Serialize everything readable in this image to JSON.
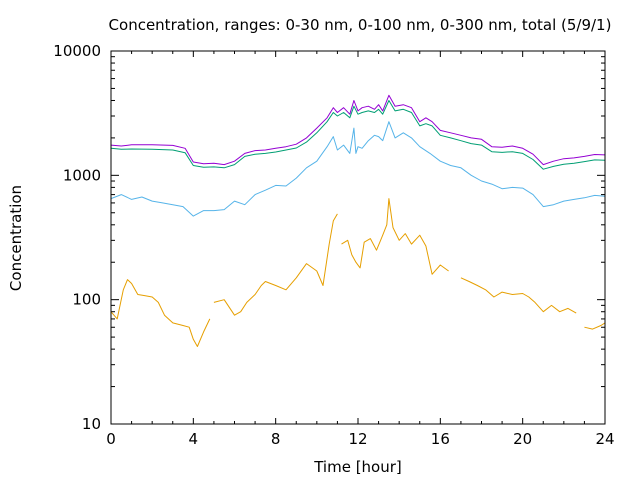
{
  "chart_data": {
    "type": "line",
    "title": "Concentration, ranges: 0-30 nm, 0-100 nm, 0-300 nm, total (5/9/1)",
    "xlabel": "Time [hour]",
    "ylabel": "Concentration",
    "xlim": [
      0,
      24
    ],
    "ylim": [
      10,
      10000
    ],
    "yscale": "log",
    "grid": false,
    "legend": "none",
    "xticks": [
      "0",
      "4",
      "8",
      "12",
      "16",
      "20",
      "24"
    ],
    "yticks": [
      "10",
      "100",
      "1000",
      "10000"
    ],
    "series": [
      {
        "color": "#9400d3",
        "points": [
          [
            0,
            1750
          ],
          [
            0.5,
            1720
          ],
          [
            1,
            1760
          ],
          [
            2,
            1760
          ],
          [
            3,
            1740
          ],
          [
            3.6,
            1650
          ],
          [
            4,
            1280
          ],
          [
            4.5,
            1240
          ],
          [
            5,
            1250
          ],
          [
            5.5,
            1220
          ],
          [
            6,
            1300
          ],
          [
            6.5,
            1500
          ],
          [
            7,
            1580
          ],
          [
            7.5,
            1600
          ],
          [
            8,
            1650
          ],
          [
            8.5,
            1700
          ],
          [
            9,
            1780
          ],
          [
            9.5,
            2000
          ],
          [
            10,
            2400
          ],
          [
            10.5,
            2900
          ],
          [
            10.8,
            3500
          ],
          [
            11,
            3200
          ],
          [
            11.3,
            3500
          ],
          [
            11.6,
            3100
          ],
          [
            11.8,
            4000
          ],
          [
            12,
            3300
          ],
          [
            12.2,
            3500
          ],
          [
            12.5,
            3600
          ],
          [
            12.8,
            3400
          ],
          [
            13,
            3700
          ],
          [
            13.2,
            3300
          ],
          [
            13.5,
            4400
          ],
          [
            13.8,
            3600
          ],
          [
            14.2,
            3700
          ],
          [
            14.6,
            3500
          ],
          [
            15,
            2700
          ],
          [
            15.3,
            2900
          ],
          [
            15.6,
            2700
          ],
          [
            16,
            2300
          ],
          [
            16.5,
            2200
          ],
          [
            17,
            2100
          ],
          [
            17.5,
            2000
          ],
          [
            18,
            1950
          ],
          [
            18.5,
            1700
          ],
          [
            19,
            1680
          ],
          [
            19.5,
            1720
          ],
          [
            20,
            1650
          ],
          [
            20.5,
            1480
          ],
          [
            21,
            1220
          ],
          [
            21.5,
            1300
          ],
          [
            22,
            1360
          ],
          [
            22.5,
            1380
          ],
          [
            23,
            1420
          ],
          [
            23.5,
            1470
          ],
          [
            24,
            1460
          ]
        ]
      },
      {
        "color": "#009e73",
        "points": [
          [
            0,
            1650
          ],
          [
            0.5,
            1620
          ],
          [
            1,
            1630
          ],
          [
            2,
            1620
          ],
          [
            3,
            1600
          ],
          [
            3.6,
            1520
          ],
          [
            4,
            1200
          ],
          [
            4.5,
            1160
          ],
          [
            5,
            1170
          ],
          [
            5.5,
            1150
          ],
          [
            6,
            1220
          ],
          [
            6.5,
            1420
          ],
          [
            7,
            1480
          ],
          [
            7.5,
            1500
          ],
          [
            8,
            1540
          ],
          [
            8.5,
            1600
          ],
          [
            9,
            1660
          ],
          [
            9.5,
            1850
          ],
          [
            10,
            2200
          ],
          [
            10.5,
            2700
          ],
          [
            10.8,
            3200
          ],
          [
            11,
            3000
          ],
          [
            11.3,
            3200
          ],
          [
            11.6,
            2900
          ],
          [
            11.8,
            3600
          ],
          [
            12,
            3100
          ],
          [
            12.2,
            3200
          ],
          [
            12.5,
            3300
          ],
          [
            12.8,
            3200
          ],
          [
            13,
            3400
          ],
          [
            13.2,
            3100
          ],
          [
            13.5,
            4000
          ],
          [
            13.8,
            3300
          ],
          [
            14.2,
            3400
          ],
          [
            14.6,
            3200
          ],
          [
            15,
            2500
          ],
          [
            15.3,
            2600
          ],
          [
            15.6,
            2500
          ],
          [
            16,
            2100
          ],
          [
            16.5,
            2000
          ],
          [
            17,
            1900
          ],
          [
            17.5,
            1800
          ],
          [
            18,
            1750
          ],
          [
            18.5,
            1550
          ],
          [
            19,
            1530
          ],
          [
            19.5,
            1550
          ],
          [
            20,
            1500
          ],
          [
            20.5,
            1340
          ],
          [
            21,
            1120
          ],
          [
            21.5,
            1180
          ],
          [
            22,
            1230
          ],
          [
            22.5,
            1250
          ],
          [
            23,
            1290
          ],
          [
            23.5,
            1330
          ],
          [
            24,
            1320
          ]
        ]
      },
      {
        "color": "#56b4e9",
        "points": [
          [
            0,
            650
          ],
          [
            0.5,
            700
          ],
          [
            1,
            640
          ],
          [
            1.5,
            670
          ],
          [
            2,
            620
          ],
          [
            2.5,
            600
          ],
          [
            3,
            580
          ],
          [
            3.5,
            560
          ],
          [
            4,
            470
          ],
          [
            4.5,
            520
          ],
          [
            5,
            520
          ],
          [
            5.5,
            530
          ],
          [
            6,
            620
          ],
          [
            6.5,
            580
          ],
          [
            7,
            700
          ],
          [
            7.5,
            760
          ],
          [
            8,
            830
          ],
          [
            8.5,
            820
          ],
          [
            9,
            950
          ],
          [
            9.5,
            1150
          ],
          [
            10,
            1300
          ],
          [
            10.5,
            1700
          ],
          [
            10.8,
            2050
          ],
          [
            11,
            1600
          ],
          [
            11.3,
            1750
          ],
          [
            11.6,
            1500
          ],
          [
            11.8,
            2400
          ],
          [
            11.9,
            1500
          ],
          [
            12,
            1700
          ],
          [
            12.2,
            1650
          ],
          [
            12.5,
            1900
          ],
          [
            12.8,
            2100
          ],
          [
            13,
            2050
          ],
          [
            13.2,
            1900
          ],
          [
            13.5,
            2700
          ],
          [
            13.8,
            2000
          ],
          [
            14.2,
            2200
          ],
          [
            14.6,
            2000
          ],
          [
            15,
            1700
          ],
          [
            15.5,
            1500
          ],
          [
            16,
            1300
          ],
          [
            16.5,
            1200
          ],
          [
            17,
            1150
          ],
          [
            17.5,
            1000
          ],
          [
            18,
            900
          ],
          [
            18.5,
            850
          ],
          [
            19,
            780
          ],
          [
            19.5,
            800
          ],
          [
            20,
            790
          ],
          [
            20.5,
            700
          ],
          [
            21,
            560
          ],
          [
            21.5,
            580
          ],
          [
            22,
            620
          ],
          [
            22.5,
            640
          ],
          [
            23,
            660
          ],
          [
            23.5,
            690
          ],
          [
            24,
            680
          ]
        ]
      },
      {
        "color": "#e69f00",
        "segments": [
          [
            [
              0,
              80
            ],
            [
              0.3,
              70
            ],
            [
              0.6,
              120
            ],
            [
              0.8,
              145
            ],
            [
              1,
              135
            ],
            [
              1.3,
              110
            ],
            [
              1.6,
              108
            ],
            [
              2,
              105
            ],
            [
              2.3,
              95
            ],
            [
              2.6,
              75
            ],
            [
              3,
              65
            ],
            [
              3.5,
              62
            ],
            [
              3.8,
              60
            ],
            [
              4,
              48
            ],
            [
              4.2,
              42
            ],
            [
              4.5,
              55
            ],
            [
              4.8,
              70
            ]
          ],
          [
            [
              5,
              95
            ],
            [
              5.5,
              100
            ],
            [
              6,
              75
            ],
            [
              6.3,
              80
            ],
            [
              6.6,
              95
            ],
            [
              7,
              110
            ],
            [
              7.3,
              130
            ],
            [
              7.5,
              140
            ],
            [
              8,
              130
            ],
            [
              8.5,
              120
            ],
            [
              9,
              150
            ],
            [
              9.5,
              195
            ],
            [
              10,
              170
            ],
            [
              10.3,
              130
            ],
            [
              10.6,
              280
            ],
            [
              10.8,
              430
            ],
            [
              11,
              490
            ]
          ],
          [
            [
              11.2,
              280
            ],
            [
              11.5,
              300
            ],
            [
              11.7,
              230
            ],
            [
              11.9,
              200
            ],
            [
              12.1,
              180
            ],
            [
              12.3,
              290
            ],
            [
              12.6,
              310
            ],
            [
              12.9,
              250
            ],
            [
              13.2,
              330
            ],
            [
              13.4,
              400
            ],
            [
              13.5,
              650
            ],
            [
              13.7,
              380
            ],
            [
              14,
              300
            ],
            [
              14.3,
              340
            ],
            [
              14.6,
              280
            ],
            [
              15,
              330
            ],
            [
              15.3,
              270
            ],
            [
              15.6,
              160
            ],
            [
              16,
              190
            ],
            [
              16.4,
              170
            ]
          ],
          [
            [
              17,
              150
            ],
            [
              17.4,
              140
            ],
            [
              17.8,
              130
            ],
            [
              18.2,
              120
            ],
            [
              18.6,
              105
            ],
            [
              19,
              115
            ],
            [
              19.5,
              110
            ],
            [
              20,
              112
            ],
            [
              20.3,
              105
            ],
            [
              20.6,
              95
            ],
            [
              21,
              80
            ],
            [
              21.4,
              90
            ],
            [
              21.8,
              80
            ],
            [
              22.2,
              85
            ],
            [
              22.6,
              78
            ]
          ],
          [
            [
              23,
              60
            ],
            [
              23.4,
              58
            ],
            [
              23.8,
              62
            ],
            [
              24,
              65
            ]
          ]
        ]
      }
    ]
  }
}
